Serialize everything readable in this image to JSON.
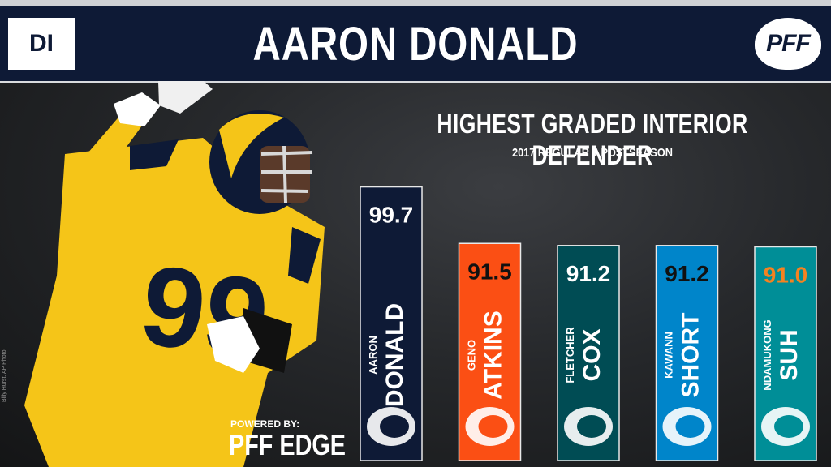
{
  "header": {
    "position": "DI",
    "player": "AARON DONALD",
    "logo": "PFF"
  },
  "footer": {
    "powered_by": "POWERED BY:",
    "brand": "PFF EDGE",
    "photo_credit": "Billy Hurst, AP Photo"
  },
  "colors": {
    "header_bg": "#0e1a36",
    "rams_gold": "#f5c518",
    "rams_navy": "#0e1a36"
  },
  "chart_data": {
    "type": "bar",
    "title": "HIGHEST GRADED INTERIOR DEFENDER",
    "subtitle": "2017 REGULAR + POSTSEASON",
    "categories": [
      "AARON DONALD",
      "GENO ATKINS",
      "FLETCHER COX",
      "KAWANN SHORT",
      "NDAMUKONG SUH"
    ],
    "first_names": [
      "AARON",
      "GENO",
      "FLETCHER",
      "KAWANN",
      "NDAMUKONG"
    ],
    "last_names": [
      "DONALD",
      "ATKINS",
      "COX",
      "SHORT",
      "SUH"
    ],
    "values": [
      99.7,
      91.5,
      91.2,
      91.2,
      91.0
    ],
    "value_labels": [
      "99.7",
      "91.5",
      "91.2",
      "91.2",
      "91.0"
    ],
    "bar_colors": [
      "#0e1a36",
      "#fb4f14",
      "#004c54",
      "#0085ca",
      "#008e97"
    ],
    "value_colors": [
      "#ffffff",
      "#111111",
      "#ffffff",
      "#111111",
      "#f58220"
    ],
    "team_icons": [
      "rams-horn-icon",
      "bengals-b-icon",
      "eagle-icon",
      "panther-icon",
      "dolphin-icon"
    ],
    "ylim": [
      60,
      100
    ]
  }
}
